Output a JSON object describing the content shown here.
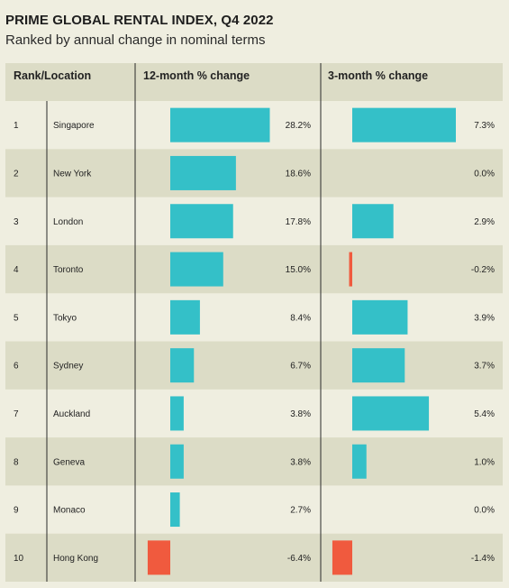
{
  "header": {
    "title": "PRIME GLOBAL RENTAL INDEX, Q4 2022",
    "subtitle": "Ranked by annual change in nominal terms"
  },
  "columns": {
    "rank_location": "Rank/Location",
    "twelve_month": "12-month % change",
    "three_month": "3-month % change"
  },
  "colors": {
    "positive": "#34c0c8",
    "negative": "#f05a3e",
    "row_band": "#dcdcc6",
    "background": "#efeee0",
    "divider": "#2a2a2a"
  },
  "chart_data": {
    "type": "table",
    "title": "PRIME GLOBAL RENTAL INDEX, Q4 2022",
    "subtitle": "Ranked by annual change in nominal terms",
    "rows": [
      {
        "rank": "1",
        "location": "Singapore",
        "twelve_month": 28.2,
        "twelve_month_label": "28.2%",
        "three_month": 7.3,
        "three_month_label": "7.3%"
      },
      {
        "rank": "2",
        "location": "New York",
        "twelve_month": 18.6,
        "twelve_month_label": "18.6%",
        "three_month": 0.0,
        "three_month_label": "0.0%"
      },
      {
        "rank": "3",
        "location": "London",
        "twelve_month": 17.8,
        "twelve_month_label": "17.8%",
        "three_month": 2.9,
        "three_month_label": "2.9%"
      },
      {
        "rank": "4",
        "location": "Toronto",
        "twelve_month": 15.0,
        "twelve_month_label": "15.0%",
        "three_month": -0.2,
        "three_month_label": "-0.2%"
      },
      {
        "rank": "5",
        "location": "Tokyo",
        "twelve_month": 8.4,
        "twelve_month_label": "8.4%",
        "three_month": 3.9,
        "three_month_label": "3.9%"
      },
      {
        "rank": "6",
        "location": "Sydney",
        "twelve_month": 6.7,
        "twelve_month_label": "6.7%",
        "three_month": 3.7,
        "three_month_label": "3.7%"
      },
      {
        "rank": "7",
        "location": "Auckland",
        "twelve_month": 3.8,
        "twelve_month_label": "3.8%",
        "three_month": 5.4,
        "three_month_label": "5.4%"
      },
      {
        "rank": "8",
        "location": "Geneva",
        "twelve_month": 3.8,
        "twelve_month_label": "3.8%",
        "three_month": 1.0,
        "three_month_label": "1.0%"
      },
      {
        "rank": "9",
        "location": "Monaco",
        "twelve_month": 2.7,
        "twelve_month_label": "2.7%",
        "three_month": 0.0,
        "three_month_label": "0.0%"
      },
      {
        "rank": "10",
        "location": "Hong Kong",
        "twelve_month": -6.4,
        "twelve_month_label": "-6.4%",
        "three_month": -1.4,
        "three_month_label": "-1.4%"
      }
    ]
  }
}
